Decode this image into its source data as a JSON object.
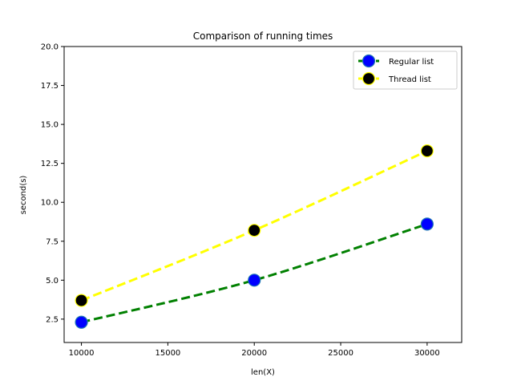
{
  "chart_data": {
    "type": "line",
    "title": "Comparison of running times",
    "xlabel": "len(X)",
    "ylabel": "second(s)",
    "xlim": [
      9000,
      32000
    ],
    "ylim": [
      1.0,
      20.0
    ],
    "xticks": [
      10000,
      15000,
      20000,
      25000,
      30000
    ],
    "yticks": [
      2.5,
      5.0,
      7.5,
      10.0,
      12.5,
      15.0,
      17.5,
      20.0
    ],
    "xtick_labels": [
      "10000",
      "15000",
      "20000",
      "25000",
      "30000"
    ],
    "ytick_labels": [
      "2.5",
      "5.0",
      "7.5",
      "10.0",
      "12.5",
      "15.0",
      "17.5",
      "20.0"
    ],
    "x": [
      10000,
      20000,
      30000
    ],
    "grid": false,
    "legend_position": "top-right",
    "series": [
      {
        "name": "Regular list",
        "values": [
          2.3,
          5.0,
          8.6
        ],
        "line_color": "#008000",
        "marker_face": "#0000ff",
        "marker_edge": "#1f77b4",
        "line_style": "dashed"
      },
      {
        "name": "Thread list",
        "values": [
          3.7,
          8.2,
          13.3
        ],
        "line_color": "#ffff00",
        "marker_face": "#000000",
        "marker_edge": "#ffff00",
        "line_style": "dashed"
      }
    ]
  }
}
